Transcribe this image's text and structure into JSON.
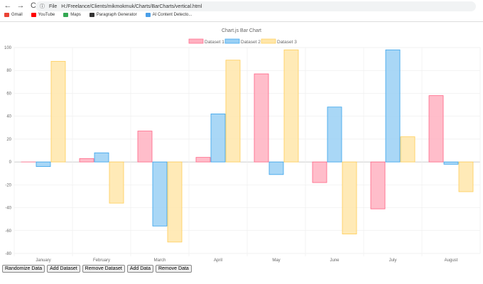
{
  "browser": {
    "back": "←",
    "forward": "→",
    "reload": "C",
    "file_label": "File",
    "url": "H:/Freelance/Clients/mikmokmuk/Charts/BarCharts/vertical.html",
    "bookmarks": [
      {
        "label": "Gmail",
        "color": "#ea4335"
      },
      {
        "label": "YouTube",
        "color": "#ff0000"
      },
      {
        "label": "Maps",
        "color": "#34a853"
      },
      {
        "label": "Paragraph Generator",
        "color": "#333333"
      },
      {
        "label": "AI Content Detecto...",
        "color": "#4a9fe8"
      }
    ]
  },
  "buttons": [
    "Randomize Data",
    "Add Dataset",
    "Remove Dataset",
    "Add Data",
    "Remove Data"
  ],
  "chart_data": {
    "type": "bar",
    "title": "Chart.js Bar Chart",
    "legend_position": "top",
    "grid": true,
    "categories": [
      "January",
      "February",
      "March",
      "April",
      "May",
      "June",
      "July",
      "August"
    ],
    "ylim": [
      -80,
      100
    ],
    "yticks": [
      100,
      80,
      60,
      40,
      20,
      0,
      -20,
      -40,
      -60,
      -80
    ],
    "series": [
      {
        "name": "Dataset 1",
        "fill": "#ffb1c1",
        "stroke": "#ff6384",
        "values": [
          0,
          3,
          27,
          4,
          77,
          -18,
          -41,
          58
        ]
      },
      {
        "name": "Dataset 2",
        "fill": "#9ad0f5",
        "stroke": "#36a2eb",
        "values": [
          -4,
          8,
          -56,
          42,
          -11,
          48,
          98,
          -2
        ]
      },
      {
        "name": "Dataset 3",
        "fill": "#ffe6aa",
        "stroke": "#ffcd56",
        "values": [
          88,
          -36,
          -70,
          89,
          98,
          -63,
          22,
          -26
        ]
      }
    ]
  }
}
